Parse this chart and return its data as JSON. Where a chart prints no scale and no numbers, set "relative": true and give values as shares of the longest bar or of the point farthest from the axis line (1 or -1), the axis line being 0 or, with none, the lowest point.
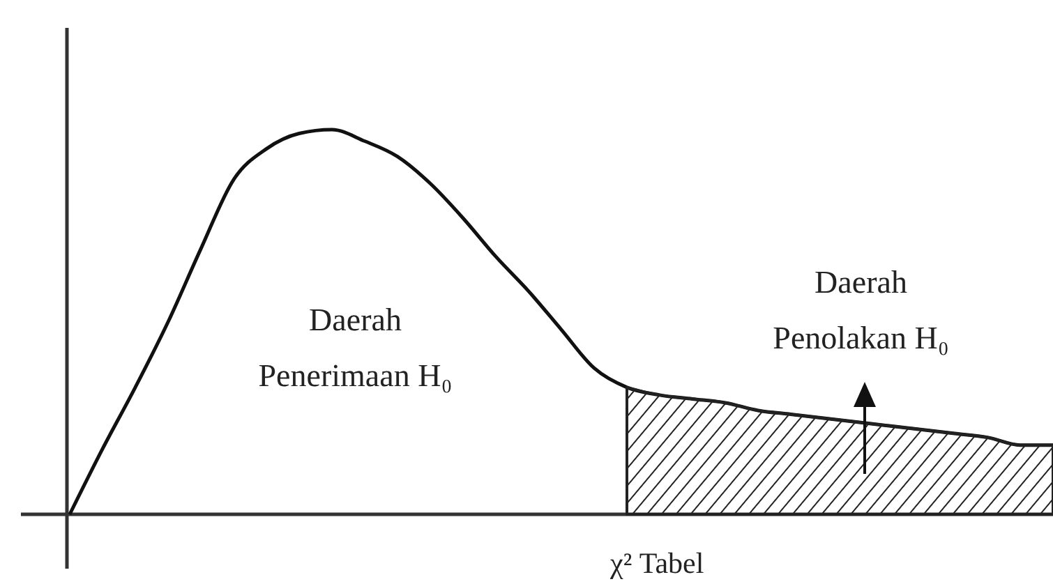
{
  "chart_data": {
    "type": "line",
    "relative": true,
    "categories": [
      null,
      null,
      null,
      null,
      null,
      null,
      null,
      null,
      null,
      null,
      null,
      null,
      null,
      null,
      null,
      null,
      null,
      null,
      null,
      null,
      null,
      null,
      null,
      null,
      null,
      null,
      null,
      null,
      null,
      null,
      null
    ],
    "series": [
      {
        "color": "#111111",
        "values": [
          0,
          0.17,
          0.33,
          0.5,
          0.69,
          0.87,
          0.95,
          0.99,
          1,
          0.97,
          0.93,
          0.86,
          0.77,
          0.67,
          0.58,
          0.48,
          0.38,
          0.33,
          0.31,
          0.3,
          0.29,
          0.27,
          0.26,
          0.25,
          0.24,
          0.23,
          0.22,
          0.21,
          0.2,
          0.18,
          0.18
        ]
      },
      {
        "type": "area",
        "color": "#222222",
        "values": [
          null,
          null,
          null,
          null,
          null,
          null,
          null,
          null,
          null,
          null,
          null,
          null,
          null,
          null,
          null,
          null,
          null,
          0.33,
          0.31,
          0.3,
          0.29,
          0.27,
          0.26,
          0.25,
          0.24,
          0.23,
          0.22,
          0.21,
          0.2,
          0.18,
          0.18
        ]
      }
    ],
    "annotations": [
      "Daerah Penerimaan H₀",
      "Daerah Penolakan H₀",
      "χ² Tabel"
    ]
  }
}
